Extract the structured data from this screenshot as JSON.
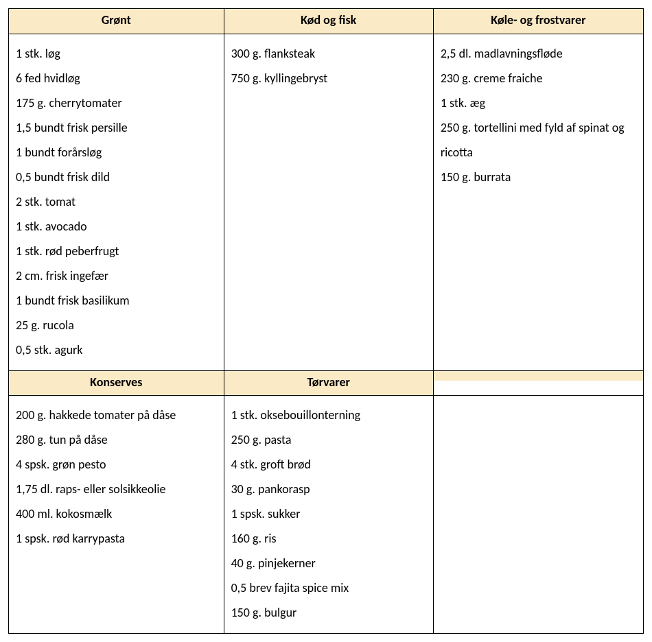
{
  "colors": {
    "header_bg": "#fbeac6",
    "border": "#000000",
    "text": "#000000",
    "page_bg": "#ffffff"
  },
  "typography": {
    "font_family": "Calibri, 'Segoe UI', Arial, sans-serif",
    "header_fontsize_pt": 13,
    "header_weight": 700,
    "body_fontsize_pt": 13,
    "body_weight": 400,
    "line_height": 2.0
  },
  "layout": {
    "columns": 3,
    "rows": 2,
    "col_widths_pct": [
      33.9,
      33.0,
      33.1
    ]
  },
  "row1": {
    "col1": {
      "header": "Grønt",
      "items": [
        "1 stk. løg",
        "6 fed hvidløg",
        "175 g. cherrytomater",
        "1,5 bundt frisk persille",
        "1 bundt forårsløg",
        "0,5 bundt frisk dild",
        "2 stk. tomat",
        "1 stk. avocado",
        "1 stk. rød peberfrugt",
        "2 cm. frisk ingefær",
        "1 bundt frisk basilikum",
        "25 g. rucola",
        "0,5 stk. agurk"
      ]
    },
    "col2": {
      "header": "Kød og fisk",
      "items": [
        "300 g. flanksteak",
        "750 g. kyllingebryst"
      ]
    },
    "col3": {
      "header": "Køle- og frostvarer",
      "items": [
        "2,5 dl. madlavningsfløde",
        "230 g. creme fraiche",
        "1 stk. æg",
        "250 g. tortellini med fyld af spinat og ricotta",
        "150 g. burrata"
      ]
    }
  },
  "row2": {
    "col1": {
      "header": "Konserves",
      "items": [
        "200 g. hakkede tomater på dåse",
        "280 g. tun på dåse",
        "4 spsk. grøn pesto",
        "1,75 dl. raps- eller solsikkeolie",
        "400 ml. kokosmælk",
        "1 spsk. rød karrypasta"
      ]
    },
    "col2": {
      "header": "Tørvarer",
      "items": [
        "1 stk. oksebouillonterning",
        "250 g. pasta",
        "4 stk. groft brød",
        "30 g. pankorasp",
        "1 spsk. sukker",
        "160 g. ris",
        "40 g. pinjekerner",
        "0,5 brev fajita spice mix",
        "150 g. bulgur"
      ]
    },
    "col3": {
      "header": "",
      "items": []
    }
  }
}
